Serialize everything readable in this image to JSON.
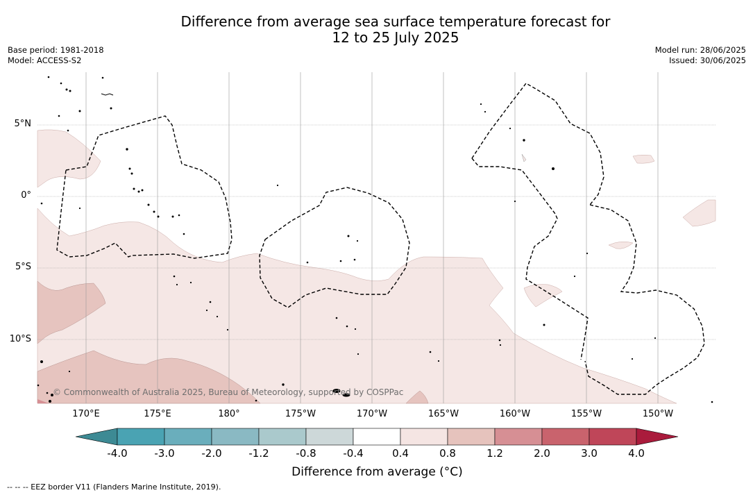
{
  "title": {
    "line1": "Difference from average sea surface temperature forecast for",
    "line2": "12 to 25 July 2025"
  },
  "meta": {
    "base_period": "Base period: 1981-2018",
    "model": "Model: ACCESS-S2",
    "model_run": "Model run: 28/06/2025",
    "issued": "Issued: 30/06/2025"
  },
  "map": {
    "lat_labels": [
      "5°N",
      "0°",
      "5°S",
      "10°S"
    ],
    "lon_labels": [
      "170°E",
      "175°E",
      "180°",
      "175°W",
      "170°W",
      "165°W",
      "160°W",
      "155°W",
      "150°W"
    ],
    "copyright": "© Commonwealth of Australia 2025, Bureau of Meteorology, supported by COSPPac",
    "land_color": "#000000",
    "eez_style": "dashed"
  },
  "colorbar": {
    "ticks": [
      "-4.0",
      "-3.0",
      "-2.0",
      "-1.2",
      "-0.8",
      "-0.4",
      "0.4",
      "0.8",
      "1.2",
      "2.0",
      "3.0",
      "4.0"
    ],
    "colors": [
      "#3d8a94",
      "#4aa3b3",
      "#6aaebc",
      "#8ab9c3",
      "#aac9cc",
      "#cdd8d9",
      "#ffffff",
      "#f5e5e3",
      "#e6c3bd",
      "#d68f94",
      "#c9636d",
      "#bf4659",
      "#aa1b3c"
    ],
    "title": "Difference from average (°C)"
  },
  "footnote": "--  --  -- EEZ border V11 (Flanders Marine Institute, 2019)."
}
